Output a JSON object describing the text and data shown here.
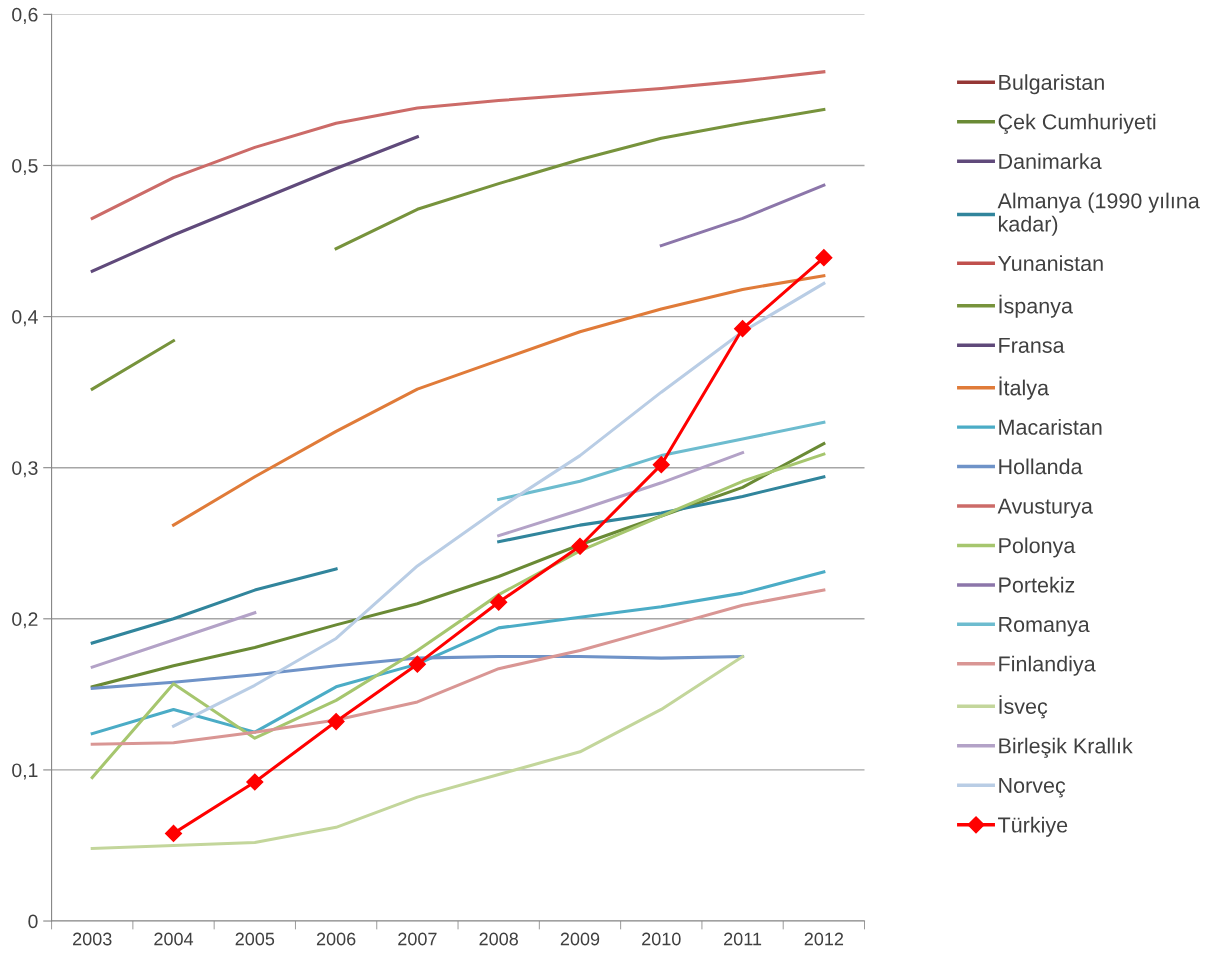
{
  "chart_data": {
    "type": "line",
    "categories": [
      "2003",
      "2004",
      "2005",
      "2006",
      "2007",
      "2008",
      "2009",
      "2010",
      "2011",
      "2012"
    ],
    "ylim": [
      0,
      0.6
    ],
    "yticks": [
      0,
      {
        "value": 0.1,
        "label": "0,1"
      },
      {
        "value": 0.2,
        "label": "0,2"
      },
      {
        "value": 0.3,
        "label": "0,3"
      },
      {
        "value": 0.4,
        "label": "0,4"
      },
      {
        "value": 0.5,
        "label": "0,5"
      },
      {
        "value": 0.6,
        "label": "0,6"
      }
    ],
    "grid": "y",
    "legend": "right",
    "marker": "none",
    "line_style": "solid",
    "series": [
      {
        "name": "Bulgaristan",
        "color": "#953735",
        "values": [
          null,
          null,
          null,
          null,
          null,
          null,
          null,
          null,
          null,
          null
        ]
      },
      {
        "name": "Çek Cumhuriyeti",
        "color": "#6a8a35",
        "values": [
          0.155,
          0.169,
          0.181,
          0.196,
          0.21,
          0.228,
          0.249,
          0.268,
          0.287,
          0.316
        ]
      },
      {
        "name": "Danimarka",
        "color": "#604a7b",
        "values": [
          0.43,
          0.454,
          0.476,
          0.498,
          0.519,
          null,
          null,
          null,
          null,
          null
        ]
      },
      {
        "name": "Almanya (1990 yılına kadar)",
        "color": "#31859c",
        "values": [
          0.184,
          0.2,
          0.219,
          0.233,
          null,
          0.251,
          0.262,
          0.27,
          0.281,
          0.294
        ]
      },
      {
        "name": "Yunanistan",
        "color": "#c0504d",
        "values": [
          null,
          null,
          null,
          null,
          null,
          null,
          null,
          null,
          null,
          null
        ]
      },
      {
        "name": "İspanya",
        "color": "#77933c",
        "values": [
          0.352,
          0.384,
          null,
          0.445,
          0.471,
          0.488,
          0.504,
          0.518,
          0.528,
          0.537
        ]
      },
      {
        "name": "Fransa",
        "color": "#5f497a",
        "values": [
          null,
          null,
          null,
          null,
          null,
          null,
          null,
          null,
          null,
          null
        ]
      },
      {
        "name": "İtalya",
        "color": "#e07b39",
        "values": [
          null,
          0.262,
          0.294,
          0.324,
          0.352,
          0.371,
          0.39,
          0.405,
          0.418,
          0.427
        ]
      },
      {
        "name": "Macaristan",
        "color": "#4bacc6",
        "values": [
          0.124,
          0.14,
          0.125,
          0.155,
          0.17,
          0.194,
          0.201,
          0.208,
          0.217,
          0.231
        ]
      },
      {
        "name": "Hollanda",
        "color": "#6f93c8",
        "values": [
          0.154,
          0.158,
          0.163,
          0.169,
          0.174,
          0.175,
          0.175,
          0.174,
          0.175,
          null
        ]
      },
      {
        "name": "Avusturya",
        "color": "#cc6b68",
        "values": [
          0.465,
          0.492,
          0.512,
          0.528,
          0.538,
          0.543,
          0.547,
          0.551,
          0.556,
          0.562
        ]
      },
      {
        "name": "Polonya",
        "color": "#a6c66e",
        "values": [
          0.095,
          0.157,
          0.121,
          0.146,
          0.179,
          0.216,
          0.245,
          0.268,
          0.291,
          0.309
        ]
      },
      {
        "name": "Portekiz",
        "color": "#8c76aa",
        "values": [
          null,
          null,
          null,
          null,
          null,
          null,
          null,
          0.447,
          0.465,
          0.487
        ]
      },
      {
        "name": "Romanya",
        "color": "#6dbccf",
        "values": [
          null,
          null,
          null,
          null,
          null,
          0.279,
          0.291,
          0.308,
          0.319,
          0.33
        ]
      },
      {
        "name": "Finlandiya",
        "color": "#d99694",
        "values": [
          0.117,
          0.118,
          0.125,
          0.133,
          0.145,
          0.167,
          0.179,
          0.194,
          0.209,
          0.219
        ]
      },
      {
        "name": "İsveç",
        "color": "#c3d69b",
        "values": [
          0.048,
          0.05,
          0.052,
          0.062,
          0.082,
          0.097,
          0.112,
          0.14,
          0.175,
          null
        ]
      },
      {
        "name": "Birleşik Krallık",
        "color": "#b3a2c7",
        "values": [
          0.168,
          0.186,
          0.204,
          null,
          null,
          0.255,
          0.272,
          0.29,
          0.31,
          null
        ]
      },
      {
        "name": "Norveç",
        "color": "#b9cde5",
        "values": [
          null,
          0.129,
          0.156,
          0.187,
          0.235,
          0.273,
          0.308,
          0.35,
          0.39,
          0.422
        ]
      },
      {
        "name": "Türkiye",
        "color": "#ff0000",
        "marker": "diamond",
        "values": [
          null,
          0.058,
          0.092,
          0.132,
          0.17,
          0.211,
          0.248,
          0.302,
          0.392,
          0.439
        ]
      }
    ]
  }
}
